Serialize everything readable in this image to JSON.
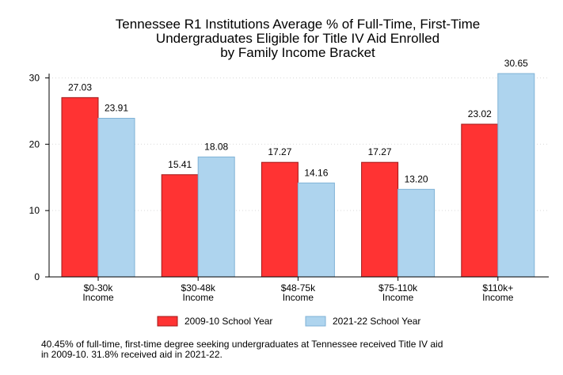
{
  "chart_data": {
    "type": "bar",
    "title_lines": [
      "Tennessee R1 Institutions Average % of Full-Time, First-Time",
      "Undergraduates Eligible for Title IV Aid Enrolled",
      "by Family Income Bracket"
    ],
    "categories": [
      [
        "$0-30k",
        "Income"
      ],
      [
        "$30-48k",
        "Income"
      ],
      [
        "$48-75k",
        "Income"
      ],
      [
        "$75-110k",
        "Income"
      ],
      [
        "$110k+",
        "Income"
      ]
    ],
    "series": [
      {
        "name": "2009-10 School Year",
        "color": "#ff3333",
        "stroke": "#a01818",
        "values": [
          27.03,
          15.41,
          17.27,
          17.27,
          23.02
        ],
        "labels": [
          "27.03",
          "15.41",
          "17.27",
          "17.27",
          "23.02"
        ]
      },
      {
        "name": "2021-22 School Year",
        "color": "#aed4ee",
        "stroke": "#7fb2d6",
        "values": [
          23.91,
          18.08,
          14.16,
          13.2,
          30.65
        ],
        "labels": [
          "23.91",
          "18.08",
          "14.16",
          "13.20",
          "30.65"
        ]
      }
    ],
    "y_ticks": [
      0,
      10,
      20,
      30
    ],
    "ylim": [
      0,
      30.65
    ],
    "grid": true,
    "legend_position": "bottom"
  },
  "note_lines": [
    "40.45% of full-time, first-time degree seeking undergraduates at Tennessee received Title IV aid",
    "in 2009-10. 31.8% received aid in 2021-22."
  ]
}
